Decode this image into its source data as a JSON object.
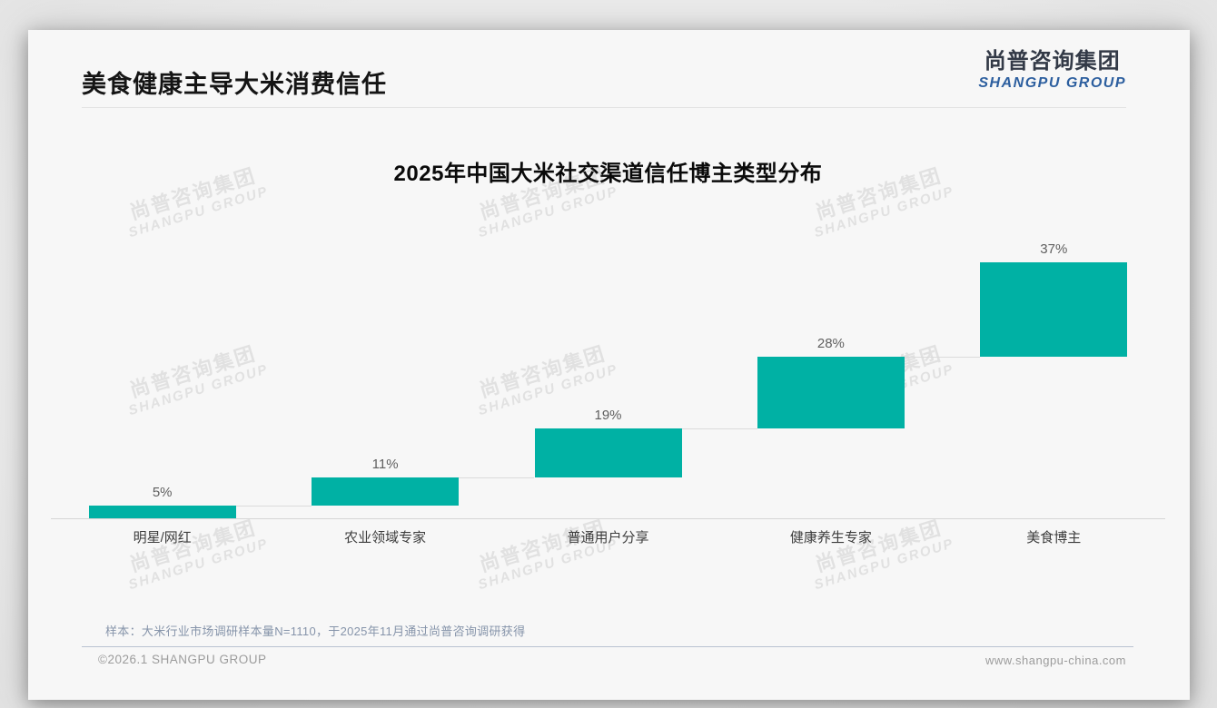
{
  "page": {
    "header": {
      "title": "美食健康主导大米消费信任",
      "logo_cn": "尚普咨询集团",
      "logo_en": "SHANGPU GROUP"
    },
    "watermark": {
      "line1": "尚普咨询集团",
      "line2": "SHANGPU GROUP"
    },
    "footer": {
      "note": "样本：大米行业市场调研样本量N=1110，于2025年11月通过尚普咨询调研获得",
      "copyright": "©2026.1 SHANGPU GROUP",
      "website": "www.shangpu-china.com"
    }
  },
  "chart_data": {
    "type": "bar",
    "subtype": "waterfall-steps",
    "title": "2025年中国大米社交渠道信任博主类型分布",
    "categories": [
      "明星/网红",
      "农业领域专家",
      "普通用户分享",
      "健康养生专家",
      "美食博主"
    ],
    "values": [
      5,
      11,
      19,
      28,
      37
    ],
    "data_labels": [
      "5%",
      "11%",
      "19%",
      "28%",
      "37%"
    ],
    "unit": "%",
    "ylim": [
      0,
      100
    ],
    "grid": false,
    "legend": false,
    "bar_color": "#00b1a4",
    "connector_color": "#dbdbdb",
    "note": "bars are stacked stepwise: each bar starts at the cumulative top of the previous bar"
  }
}
